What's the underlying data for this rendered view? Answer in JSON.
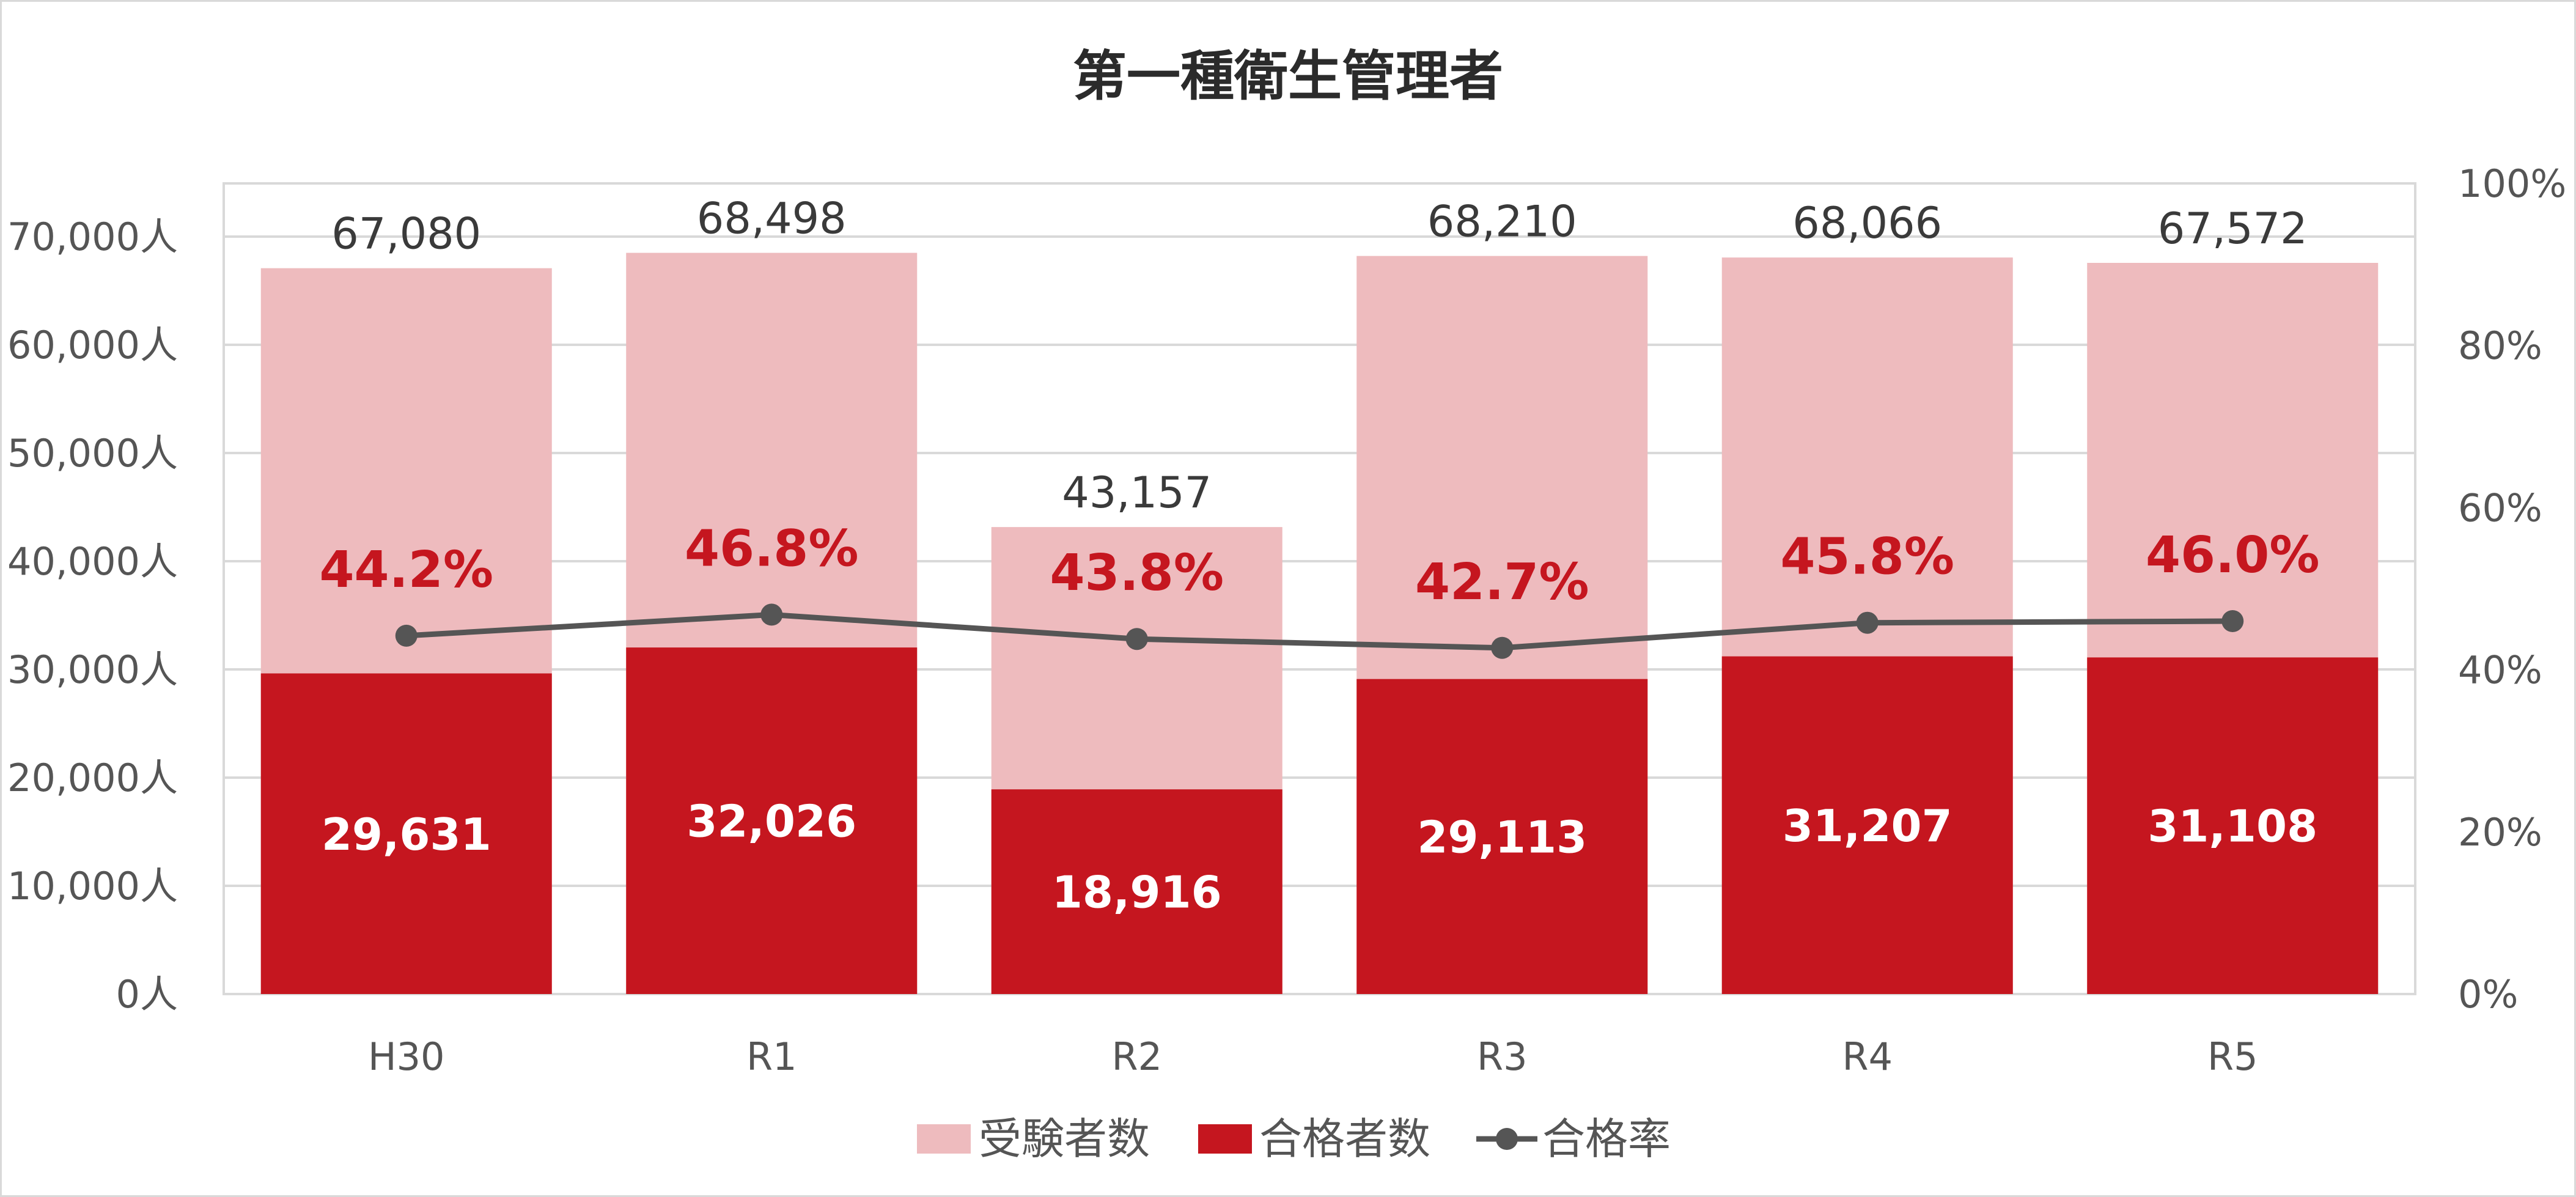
{
  "chart_data": {
    "type": "bar",
    "title": "第一種衛生管理者",
    "categories": [
      "H30",
      "R1",
      "R2",
      "R3",
      "R4",
      "R5"
    ],
    "series": [
      {
        "name": "受験者数",
        "kind": "bar",
        "color": "#eebbbe",
        "values": [
          67080,
          68498,
          43157,
          68210,
          68066,
          67572
        ],
        "labels": [
          "67,080",
          "68,498",
          "43,157",
          "68,210",
          "68,066",
          "67,572"
        ]
      },
      {
        "name": "合格者数",
        "kind": "bar",
        "color": "#c5161f",
        "values": [
          29631,
          32026,
          18916,
          29113,
          31207,
          31108
        ],
        "labels": [
          "29,631",
          "32,026",
          "18,916",
          "29,113",
          "31,207",
          "31,108"
        ]
      },
      {
        "name": "合格率",
        "kind": "line",
        "axis": "right",
        "color": "#555555",
        "values": [
          44.2,
          46.8,
          43.8,
          42.7,
          45.8,
          46.0
        ],
        "labels": [
          "44.2%",
          "46.8%",
          "43.8%",
          "42.7%",
          "45.8%",
          "46.0%"
        ]
      }
    ],
    "y_left": {
      "ylim": [
        0,
        75000
      ],
      "ticks": [
        "0人",
        "10,000人",
        "20,000人",
        "30,000人",
        "40,000人",
        "50,000人",
        "60,000人",
        "70,000人"
      ]
    },
    "y_right": {
      "ylim": [
        0,
        100
      ],
      "ticks": [
        "0%",
        "20%",
        "40%",
        "60%",
        "80%",
        "100%"
      ]
    },
    "grid": true,
    "legend": "bottom"
  }
}
